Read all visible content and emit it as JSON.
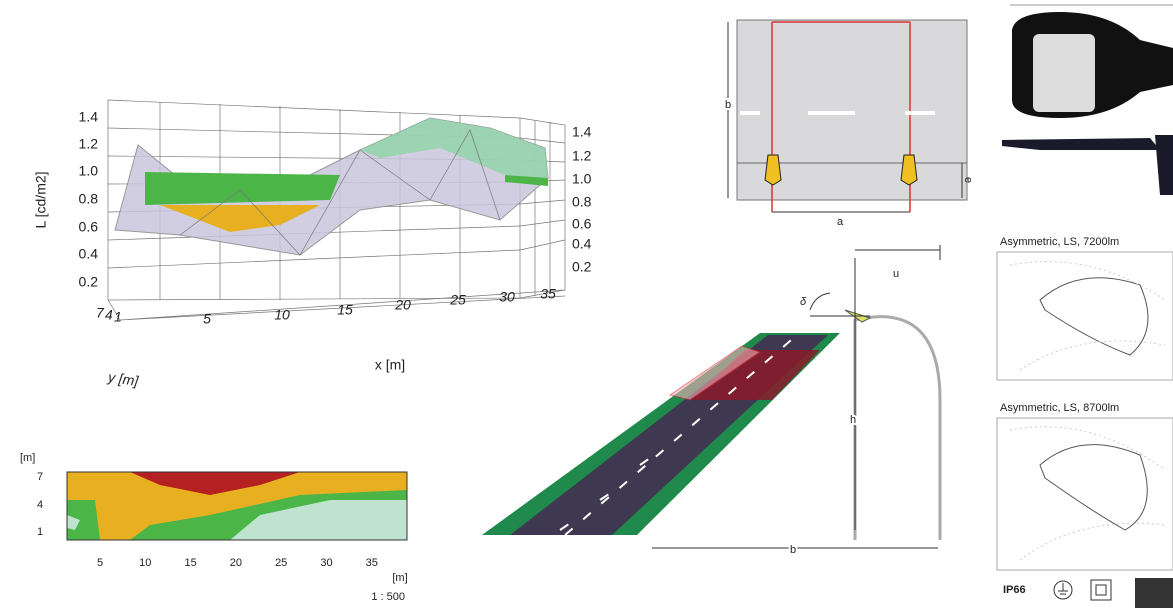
{
  "surface_plot": {
    "y_axis_label": "L [cd/m2]",
    "left_ticks": [
      "1.4",
      "1.2",
      "1.0",
      "0.8",
      "0.6",
      "0.4",
      "0.2"
    ],
    "right_ticks": [
      "1.4",
      "1.2",
      "1.0",
      "0.8",
      "0.6",
      "0.4",
      "0.2"
    ],
    "x_ticks": [
      "5",
      "10",
      "15",
      "20",
      "25",
      "30",
      "35"
    ],
    "y_ticks": [
      "7",
      "4",
      "1"
    ],
    "x_axis_label": "x [m]",
    "depth_axis_label": "y [m]"
  },
  "contour_plot": {
    "y_unit": "[m]",
    "y_ticks": [
      "7",
      "4",
      "1"
    ],
    "x_ticks": [
      "5",
      "10",
      "15",
      "20",
      "25",
      "30",
      "35"
    ],
    "x_unit": "[m]",
    "scale": "1 : 500"
  },
  "road_plan": {
    "width_label": "b",
    "spacing_label": "a",
    "offset_label": "e"
  },
  "road_perspective": {
    "angle_label": "δ",
    "overhang_label": "u",
    "height_label": "h",
    "width_label": "b"
  },
  "photometry": {
    "diagrams": [
      {
        "title": "Asymmetric, LS, 7200lm"
      },
      {
        "title": "Asymmetric, LS, 8700lm"
      }
    ],
    "protection": "IP66"
  }
}
